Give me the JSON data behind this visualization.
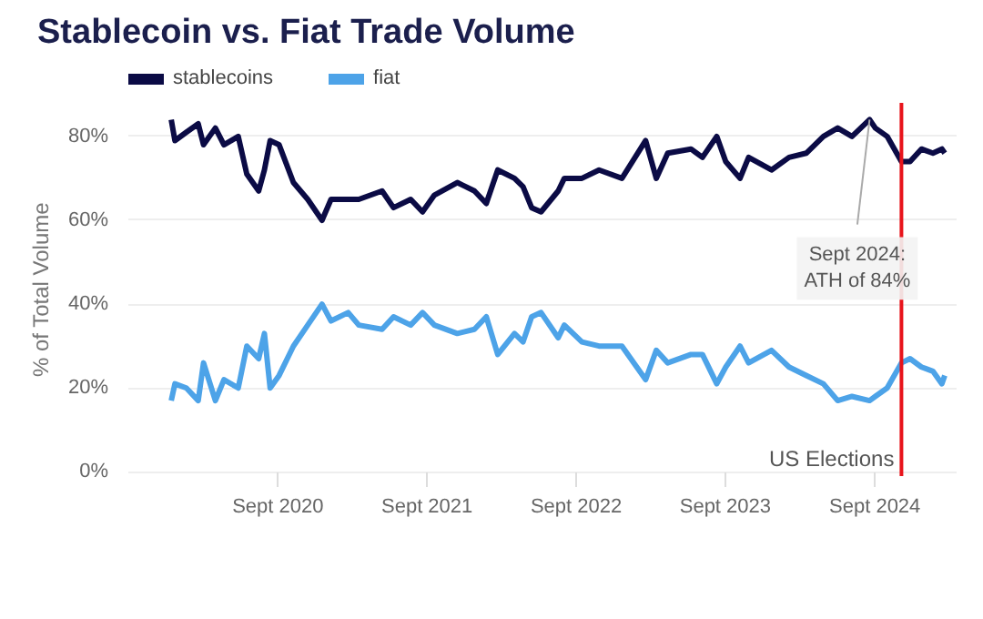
{
  "chart_data": {
    "type": "line",
    "title": "Stablecoin vs. Fiat Trade Volume",
    "ylabel": "% of Total Volume",
    "x": [
      "2019-12-15",
      "2019-12-24",
      "2020-01-21",
      "2020-02-19",
      "2020-03-03",
      "2020-04-01",
      "2020-04-22",
      "2020-05-27",
      "2020-06-17",
      "2020-07-16",
      "2020-07-30",
      "2020-08-13",
      "2020-09-04",
      "2020-10-09",
      "2020-11-13",
      "2020-12-18",
      "2021-01-09",
      "2021-02-20",
      "2021-03-18",
      "2021-05-14",
      "2021-06-11",
      "2021-07-23",
      "2021-08-21",
      "2021-09-19",
      "2021-11-14",
      "2021-12-26",
      "2022-01-24",
      "2022-02-21",
      "2022-04-03",
      "2022-04-24",
      "2022-05-15",
      "2022-06-07",
      "2022-07-19",
      "2022-08-03",
      "2022-09-15",
      "2022-10-27",
      "2022-12-22",
      "2023-02-18",
      "2023-03-16",
      "2023-04-13",
      "2023-06-09",
      "2023-07-07",
      "2023-08-11",
      "2023-09-02",
      "2023-10-07",
      "2023-10-28",
      "2023-12-23",
      "2024-02-04",
      "2024-03-17",
      "2024-04-28",
      "2024-06-02",
      "2024-07-07",
      "2024-08-19",
      "2024-09-02",
      "2024-10-01",
      "2024-11-05",
      "2024-11-26",
      "2024-12-24",
      "2025-01-21",
      "2025-02-12",
      "2025-02-19"
    ],
    "series": [
      {
        "name": "stablecoins",
        "color": "#0b0b45",
        "values": [
          84,
          79,
          81,
          83,
          78,
          82,
          78,
          80,
          71,
          67,
          72,
          79,
          78,
          69,
          65,
          60,
          65,
          65,
          65,
          67,
          63,
          65,
          62,
          66,
          69,
          67,
          64,
          72,
          70,
          68,
          63,
          62,
          67,
          70,
          70,
          72,
          70,
          79,
          70,
          76,
          77,
          75,
          80,
          74,
          70,
          75,
          72,
          75,
          76,
          80,
          82,
          80,
          84,
          82,
          80,
          74,
          74,
          77,
          76,
          77,
          76
        ]
      },
      {
        "name": "fiat",
        "color": "#4da3e8",
        "values": [
          17,
          21,
          20,
          17,
          26,
          17,
          22,
          20,
          30,
          27,
          33,
          20,
          23,
          30,
          35,
          40,
          36,
          38,
          35,
          34,
          37,
          35,
          38,
          35,
          33,
          34,
          37,
          28,
          33,
          31,
          37,
          38,
          32,
          35,
          31,
          30,
          30,
          22,
          29,
          26,
          28,
          28,
          21,
          25,
          30,
          26,
          29,
          25,
          23,
          21,
          17,
          18,
          17,
          18,
          20,
          26,
          27,
          25,
          24,
          21,
          23
        ]
      }
    ],
    "xlim": [
      "2019-09-01",
      "2025-03-20"
    ],
    "xticks": [
      {
        "value": "2020-09-01",
        "label": "Sept 2020"
      },
      {
        "value": "2021-09-01",
        "label": "Sept 2021"
      },
      {
        "value": "2022-09-01",
        "label": "Sept 2022"
      },
      {
        "value": "2023-09-01",
        "label": "Sept 2023"
      },
      {
        "value": "2024-09-01",
        "label": "Sept 2024"
      }
    ],
    "ylim": [
      -1,
      88
    ],
    "yticks": [
      {
        "value": 0,
        "label": "0%"
      },
      {
        "value": 20,
        "label": "20%"
      },
      {
        "value": 40,
        "label": "40%"
      },
      {
        "value": 60,
        "label": "60%"
      },
      {
        "value": 80,
        "label": "80%"
      }
    ],
    "grid": "y",
    "legend": "top left",
    "line_style": "solid",
    "ref_lines": [
      {
        "axis": "x",
        "value": "2024-11-05",
        "label": "US Elections",
        "color": "#e8141b"
      }
    ],
    "annotations": [
      {
        "text": "Sept 2024:\nATH of 84%",
        "x": "2024-08-19",
        "y": 84
      }
    ]
  }
}
